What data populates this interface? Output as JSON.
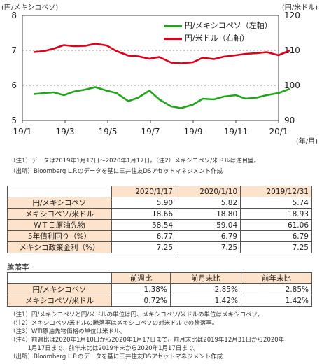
{
  "chart_data": {
    "type": "line",
    "left_unit": "(円/メキシコペソ)",
    "right_unit": "(円/米ドル)",
    "x_unit": "(年/月)",
    "x_ticks": [
      "19/1",
      "19/3",
      "19/5",
      "19/7",
      "19/9",
      "19/11",
      "20/1"
    ],
    "left_axis": {
      "min": 5,
      "max": 8,
      "ticks": [
        5,
        6,
        7,
        8
      ]
    },
    "right_axis": {
      "min": 90,
      "max": 120,
      "ticks": [
        90,
        100,
        110,
        120
      ]
    },
    "grid": "horizontal dotted",
    "legend_position": "top-right",
    "series": [
      {
        "name": "円/メキシコペソ（左軸）",
        "axis": "left",
        "color": "#22a41c",
        "x": [
          "2019-01-17",
          "2019-02-01",
          "2019-02-15",
          "2019-03-01",
          "2019-03-15",
          "2019-04-01",
          "2019-04-15",
          "2019-05-01",
          "2019-05-15",
          "2019-06-01",
          "2019-06-15",
          "2019-07-01",
          "2019-07-15",
          "2019-08-01",
          "2019-08-15",
          "2019-09-01",
          "2019-09-15",
          "2019-10-01",
          "2019-10-15",
          "2019-11-01",
          "2019-11-15",
          "2019-12-01",
          "2019-12-15",
          "2020-01-01",
          "2020-01-17"
        ],
        "values": [
          5.75,
          5.78,
          5.8,
          5.72,
          5.82,
          5.88,
          5.95,
          5.85,
          5.78,
          5.55,
          5.65,
          5.85,
          5.6,
          5.4,
          5.35,
          5.45,
          5.62,
          5.6,
          5.68,
          5.72,
          5.62,
          5.65,
          5.72,
          5.78,
          5.9
        ]
      },
      {
        "name": "円/米ドル（右軸）",
        "axis": "right",
        "color": "#e0001a",
        "x": [
          "2019-01-17",
          "2019-02-01",
          "2019-02-15",
          "2019-03-01",
          "2019-03-15",
          "2019-04-01",
          "2019-04-15",
          "2019-05-01",
          "2019-05-15",
          "2019-06-01",
          "2019-06-15",
          "2019-07-01",
          "2019-07-15",
          "2019-08-01",
          "2019-08-15",
          "2019-09-01",
          "2019-09-15",
          "2019-10-01",
          "2019-10-15",
          "2019-11-01",
          "2019-11-15",
          "2019-12-01",
          "2019-12-15",
          "2020-01-01",
          "2020-01-17"
        ],
        "values": [
          109.5,
          109.8,
          110.5,
          111.5,
          111.2,
          111.3,
          111.9,
          111.4,
          109.8,
          108.5,
          108.3,
          107.6,
          108.1,
          106.5,
          106.3,
          106.6,
          107.9,
          107.5,
          108.2,
          108.6,
          109.0,
          109.2,
          109.5,
          108.6,
          110.0
        ]
      }
    ]
  },
  "chart_notes": [
    "（注1）データは2019年1月17日～2020年1月17日。（注2）メキシコペソ/米ドルは逆目盛。",
    "（出所）Bloomberg L.P.のデータを基に三井住友DSアセットマネジメント作成"
  ],
  "table1": {
    "headers": [
      "2020/1/17",
      "2020/1/10",
      "2019/12/31"
    ],
    "rows": [
      {
        "label": "円/メキシコペソ",
        "values": [
          "5.90",
          "5.82",
          "5.74"
        ]
      },
      {
        "label": "メキシコペソ/米ドル",
        "values": [
          "18.66",
          "18.80",
          "18.93"
        ]
      },
      {
        "label": "ＷＴＩ原油先物",
        "values": [
          "58.54",
          "59.04",
          "61.06"
        ]
      },
      {
        "label": "5年債利回り（%）",
        "values": [
          "6.77",
          "6.79",
          "6.79"
        ]
      },
      {
        "label": "メキシコ政策金利（%）",
        "values": [
          "7.25",
          "7.25",
          "7.25"
        ]
      }
    ]
  },
  "table2": {
    "title": "騰落率",
    "headers": [
      "前週比",
      "前月末比",
      "前年末比"
    ],
    "rows": [
      {
        "label": "円/メキシコペソ",
        "values": [
          "1.38%",
          "2.85%",
          "2.85%"
        ]
      },
      {
        "label": "メキシコペソ/米ドル",
        "values": [
          "0.72%",
          "1.42%",
          "1.42%"
        ]
      }
    ]
  },
  "footnotes": [
    "（注1）円/メキシコペソと円/米ドルの単位は円、メキシコペソ/米ドルの単位はメキシコペソ。",
    "（注2）メキシコペソ/米ドルの騰落率はメキシコペソの対米ドルでの騰落率。",
    "（注3）WTI原油先物価格の単位は米ドル。",
    "（注4）前週比は2020年1月10日から2020年1月17日まで、前月末比は2019年12月31日から2020年",
    "　　　1月17日まで、前年末比は2019年末から2020年1月17日まで。",
    "（出所）Bloomberg L.P.のデータを基に三井住友DSアセットマネジメント作成"
  ]
}
